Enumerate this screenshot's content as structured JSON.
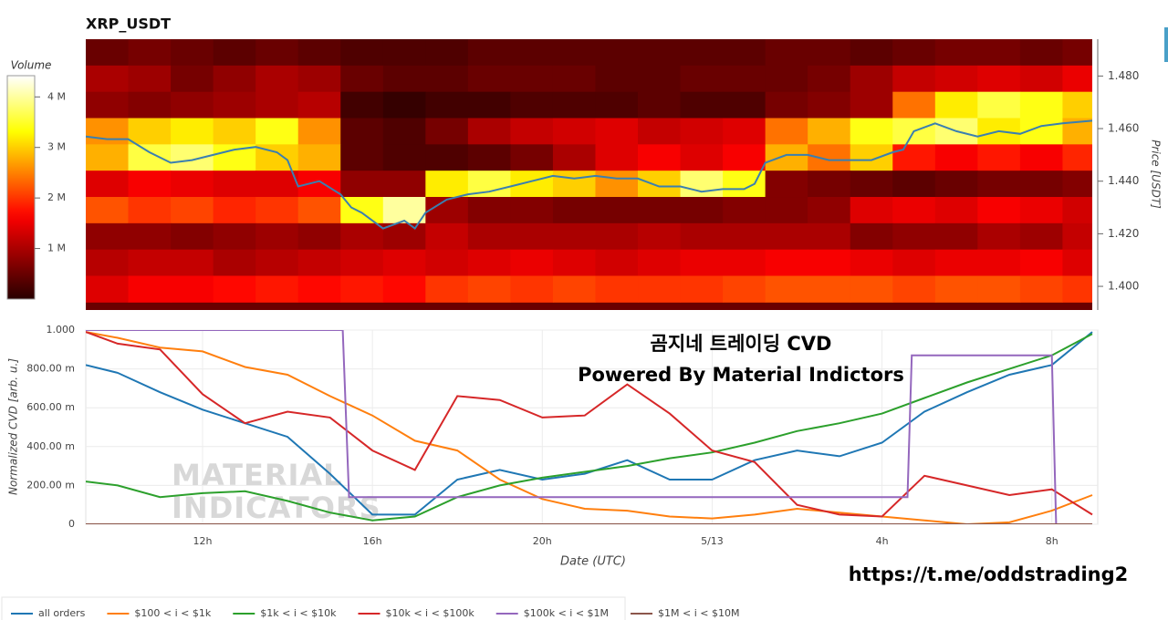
{
  "chart_data": [
    {
      "type": "heatmap",
      "title": "XRP_USDT",
      "x_edges": [
        9.25,
        10.25,
        11.25,
        12.25,
        13.25,
        14.25,
        15.25,
        16.25,
        17.25,
        18.25,
        19.25,
        20.25,
        21.25,
        22.25,
        23.25,
        24.25,
        25.25,
        26.25,
        27.25,
        28.25,
        29.25,
        30.25,
        31.25,
        32.25,
        32.95
      ],
      "y_edges": [
        1.494,
        1.484,
        1.474,
        1.464,
        1.454,
        1.444,
        1.434,
        1.424,
        1.414,
        1.404,
        1.394
      ],
      "z": [
        [
          0.5,
          0.6,
          0.5,
          0.4,
          0.5,
          0.4,
          0.3,
          0.3,
          0.3,
          0.4,
          0.4,
          0.4,
          0.4,
          0.4,
          0.4,
          0.4,
          0.5,
          0.5,
          0.4,
          0.5,
          0.6,
          0.6,
          0.5,
          0.6
        ],
        [
          1.0,
          0.9,
          0.6,
          0.8,
          1.0,
          0.9,
          0.5,
          0.4,
          0.4,
          0.5,
          0.5,
          0.5,
          0.4,
          0.4,
          0.5,
          0.5,
          0.5,
          0.6,
          0.9,
          1.2,
          1.3,
          1.4,
          1.3,
          1.5
        ],
        [
          0.8,
          0.7,
          0.8,
          0.9,
          1.0,
          1.1,
          0.2,
          0.1,
          0.2,
          0.2,
          0.3,
          0.3,
          0.3,
          0.4,
          0.3,
          0.3,
          0.6,
          0.7,
          0.9,
          2.4,
          3.2,
          3.6,
          3.4,
          3.0
        ],
        [
          2.6,
          3.0,
          3.2,
          3.0,
          3.4,
          2.6,
          0.4,
          0.3,
          0.6,
          1.0,
          1.2,
          1.3,
          1.4,
          1.2,
          1.3,
          1.4,
          2.4,
          2.8,
          3.4,
          3.6,
          3.8,
          3.2,
          3.4,
          2.8
        ],
        [
          2.8,
          3.6,
          3.8,
          3.4,
          3.0,
          2.8,
          0.4,
          0.3,
          0.3,
          0.4,
          0.6,
          1.0,
          1.4,
          1.6,
          1.4,
          1.6,
          2.8,
          2.4,
          3.0,
          1.8,
          1.6,
          1.8,
          1.6,
          1.9
        ],
        [
          1.4,
          1.6,
          1.5,
          1.4,
          1.4,
          1.6,
          0.8,
          0.8,
          3.2,
          3.6,
          3.2,
          3.0,
          2.6,
          3.0,
          3.8,
          3.4,
          0.7,
          0.6,
          0.5,
          0.4,
          0.5,
          0.6,
          0.6,
          0.7
        ],
        [
          2.2,
          2.0,
          2.1,
          1.9,
          2.0,
          2.2,
          3.4,
          4.0,
          0.9,
          0.7,
          0.7,
          0.6,
          0.6,
          0.6,
          0.6,
          0.7,
          0.7,
          0.8,
          1.4,
          1.5,
          1.4,
          1.6,
          1.5,
          1.3
        ],
        [
          0.8,
          0.8,
          0.7,
          0.8,
          0.9,
          0.8,
          1.0,
          0.9,
          1.2,
          1.0,
          1.0,
          1.0,
          1.0,
          1.1,
          1.0,
          1.0,
          1.0,
          1.0,
          0.7,
          0.8,
          0.8,
          1.0,
          0.9,
          1.2
        ],
        [
          1.1,
          1.2,
          1.2,
          1.0,
          1.1,
          1.2,
          1.3,
          1.4,
          1.3,
          1.4,
          1.5,
          1.4,
          1.3,
          1.4,
          1.5,
          1.5,
          1.6,
          1.6,
          1.5,
          1.4,
          1.5,
          1.5,
          1.6,
          1.4
        ],
        [
          1.4,
          1.6,
          1.6,
          1.7,
          1.8,
          1.7,
          1.8,
          1.7,
          2.0,
          2.1,
          2.0,
          2.1,
          2.0,
          2.0,
          2.0,
          2.1,
          2.2,
          2.2,
          2.2,
          2.1,
          2.2,
          2.2,
          2.1,
          2.0
        ]
      ],
      "colorbar": {
        "label": "Volume",
        "lim": [
          0,
          4.42
        ],
        "ticks": [
          {
            "value": 1,
            "label": "1 M"
          },
          {
            "value": 2,
            "label": "2 M"
          },
          {
            "value": 3,
            "label": "3 M"
          },
          {
            "value": 4,
            "label": "4 M"
          }
        ]
      },
      "xlim": [
        9.25,
        32.95
      ],
      "ylim": [
        1.391,
        1.494
      ],
      "ylabel": "Price [USDT]",
      "yticks": [
        {
          "value": 1.4,
          "label": "1.400"
        },
        {
          "value": 1.42,
          "label": "1.420"
        },
        {
          "value": 1.44,
          "label": "1.440"
        },
        {
          "value": 1.46,
          "label": "1.460"
        },
        {
          "value": 1.48,
          "label": "1.480"
        }
      ],
      "series": [
        {
          "color": "#3a7fb0",
          "x": [
            9.25,
            9.75,
            10.25,
            10.75,
            11.25,
            11.75,
            12.25,
            12.75,
            13.25,
            13.75,
            14.0,
            14.25,
            14.75,
            15.25,
            15.5,
            15.75,
            16.25,
            16.75,
            17.0,
            17.25,
            17.75,
            18.25,
            18.75,
            19.25,
            19.75,
            20.25,
            20.75,
            21.25,
            21.75,
            22.25,
            22.75,
            23.25,
            23.75,
            24.25,
            24.75,
            25.0,
            25.25,
            25.75,
            26.25,
            26.75,
            27.25,
            27.75,
            28.25,
            28.5,
            28.75,
            29.25,
            29.75,
            30.25,
            30.75,
            31.25,
            31.75,
            32.25,
            32.95
          ],
          "values": [
            1.457,
            1.456,
            1.456,
            1.451,
            1.447,
            1.448,
            1.45,
            1.452,
            1.453,
            1.451,
            1.448,
            1.438,
            1.44,
            1.435,
            1.43,
            1.428,
            1.422,
            1.425,
            1.422,
            1.428,
            1.433,
            1.435,
            1.436,
            1.438,
            1.44,
            1.442,
            1.441,
            1.442,
            1.441,
            1.441,
            1.438,
            1.438,
            1.436,
            1.437,
            1.437,
            1.439,
            1.447,
            1.45,
            1.45,
            1.448,
            1.448,
            1.448,
            1.451,
            1.452,
            1.459,
            1.462,
            1.459,
            1.457,
            1.459,
            1.458,
            1.461,
            1.462,
            1.463
          ]
        }
      ]
    },
    {
      "type": "line",
      "xlabel": "Date (UTC)",
      "ylabel": "Normalized CVD [arb. u.]",
      "xlim": [
        9.25,
        33.08
      ],
      "ylim": [
        0,
        1
      ],
      "xticks": [
        {
          "value": 12,
          "label": "12h"
        },
        {
          "value": 16,
          "label": "16h"
        },
        {
          "value": 20,
          "label": "20h"
        },
        {
          "value": 24,
          "label": "5/13"
        },
        {
          "value": 28,
          "label": "4h"
        },
        {
          "value": 32,
          "label": "8h"
        }
      ],
      "yticks": [
        0,
        {
          "value": 0.2,
          "label": "200.00 m"
        },
        {
          "value": 0.4,
          "label": "400.00 m"
        },
        {
          "value": 0.6,
          "label": "600.00 m"
        },
        {
          "value": 0.8,
          "label": "800.00 m"
        },
        {
          "value": 1,
          "label": "1.000"
        }
      ],
      "grid": true,
      "legend": "bottom",
      "x": [
        9.25,
        10,
        11,
        12,
        13,
        14,
        15,
        16,
        17,
        18,
        19,
        20,
        21,
        22,
        23,
        24,
        25,
        26,
        27,
        28,
        29,
        30,
        31,
        32,
        32.95
      ],
      "series": [
        {
          "name": "all orders",
          "color": "#1f77b4",
          "values": [
            0.82,
            0.78,
            0.68,
            0.59,
            0.52,
            0.45,
            0.26,
            0.05,
            0.05,
            0.23,
            0.28,
            0.23,
            0.26,
            0.33,
            0.23,
            0.23,
            0.33,
            0.38,
            0.35,
            0.42,
            0.58,
            0.68,
            0.77,
            0.82,
            0.99
          ]
        },
        {
          "name": "$100 < i < $1k",
          "color": "#ff7f0e",
          "values": [
            0.99,
            0.96,
            0.91,
            0.89,
            0.81,
            0.77,
            0.66,
            0.56,
            0.43,
            0.38,
            0.23,
            0.13,
            0.08,
            0.07,
            0.04,
            0.03,
            0.05,
            0.08,
            0.06,
            0.04,
            0.02,
            0,
            0.01,
            0.07,
            0.15
          ]
        },
        {
          "name": "$1k < i < $10k",
          "color": "#2ca02c",
          "values": [
            0.22,
            0.2,
            0.14,
            0.16,
            0.17,
            0.12,
            0.06,
            0.02,
            0.04,
            0.14,
            0.2,
            0.24,
            0.27,
            0.3,
            0.34,
            0.37,
            0.42,
            0.48,
            0.52,
            0.57,
            0.65,
            0.73,
            0.8,
            0.87,
            0.98
          ]
        },
        {
          "name": "$10k < i < $100k",
          "color": "#d62728",
          "values": [
            0.99,
            0.93,
            0.9,
            0.67,
            0.52,
            0.58,
            0.55,
            0.38,
            0.28,
            0.66,
            0.64,
            0.55,
            0.56,
            0.72,
            0.57,
            0.38,
            0.32,
            0.1,
            0.05,
            0.04,
            0.25,
            0.2,
            0.15,
            0.18,
            0.05
          ]
        },
        {
          "name": "$100k < i < $1M",
          "color": "#9467bd",
          "x": [
            9.25,
            15.3,
            15.45,
            28.6,
            28.7,
            32.0,
            32.1
          ],
          "values": [
            1,
            1,
            0.14,
            0.14,
            0.87,
            0.87,
            0
          ]
        },
        {
          "name": "$1M < i < $10M",
          "color": "#8c564b",
          "x": [
            9.25,
            32.95
          ],
          "values": [
            0,
            0
          ]
        }
      ],
      "annotations": [
        "곰지네 트레이딩 CVD",
        "Powered By Material Indictors"
      ],
      "watermark": [
        "MATERIAL",
        "INDICATORS"
      ],
      "footer": "https://t.me/oddstrading2"
    }
  ]
}
